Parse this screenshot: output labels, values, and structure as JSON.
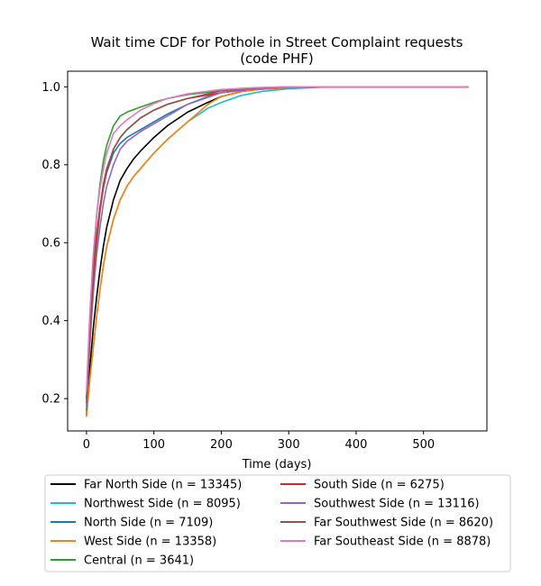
{
  "chart_data": {
    "type": "line",
    "title": [
      "Wait time CDF for Pothole in Street Complaint  requests",
      "(code PHF)"
    ],
    "xlabel": "Time (days)",
    "ylabel": "",
    "xlim": [
      -28,
      594
    ],
    "ylim": [
      0.117,
      1.04
    ],
    "xticks": [
      0,
      100,
      200,
      300,
      400,
      500
    ],
    "yticks": [
      0.2,
      0.4,
      0.6,
      0.8,
      1.0
    ],
    "xtick_labels": [
      "0",
      "100",
      "200",
      "300",
      "400",
      "500"
    ],
    "ytick_labels": [
      "0.2",
      "0.4",
      "0.6",
      "0.8",
      "1.0"
    ],
    "grid": false,
    "legend_placement": "below plot, two columns",
    "series": [
      {
        "name": "Far North Side (n = 13345)",
        "color": "#000000",
        "points": [
          [
            0,
            0.16
          ],
          [
            5,
            0.28
          ],
          [
            10,
            0.38
          ],
          [
            15,
            0.46
          ],
          [
            20,
            0.53
          ],
          [
            25,
            0.59
          ],
          [
            30,
            0.64
          ],
          [
            40,
            0.71
          ],
          [
            50,
            0.76
          ],
          [
            60,
            0.79
          ],
          [
            70,
            0.815
          ],
          [
            80,
            0.835
          ],
          [
            100,
            0.87
          ],
          [
            120,
            0.9
          ],
          [
            150,
            0.935
          ],
          [
            180,
            0.96
          ],
          [
            200,
            0.975
          ],
          [
            230,
            0.988
          ],
          [
            260,
            0.994
          ],
          [
            300,
            0.998
          ],
          [
            350,
            1.0
          ],
          [
            566,
            1.0
          ]
        ]
      },
      {
        "name": "Northwest Side (n = 8095)",
        "color": "#17becf",
        "points": [
          [
            0,
            0.155
          ],
          [
            5,
            0.25
          ],
          [
            10,
            0.33
          ],
          [
            15,
            0.41
          ],
          [
            20,
            0.48
          ],
          [
            25,
            0.54
          ],
          [
            30,
            0.59
          ],
          [
            40,
            0.66
          ],
          [
            50,
            0.71
          ],
          [
            60,
            0.745
          ],
          [
            70,
            0.77
          ],
          [
            80,
            0.79
          ],
          [
            100,
            0.83
          ],
          [
            120,
            0.865
          ],
          [
            150,
            0.91
          ],
          [
            180,
            0.945
          ],
          [
            200,
            0.96
          ],
          [
            230,
            0.978
          ],
          [
            260,
            0.988
          ],
          [
            300,
            0.995
          ],
          [
            350,
            0.999
          ],
          [
            400,
            1.0
          ],
          [
            566,
            1.0
          ]
        ]
      },
      {
        "name": "North Side (n = 7109)",
        "color": "#1f77b4",
        "points": [
          [
            0,
            0.2
          ],
          [
            5,
            0.38
          ],
          [
            10,
            0.52
          ],
          [
            15,
            0.62
          ],
          [
            20,
            0.69
          ],
          [
            25,
            0.74
          ],
          [
            30,
            0.78
          ],
          [
            40,
            0.83
          ],
          [
            50,
            0.855
          ],
          [
            60,
            0.87
          ],
          [
            80,
            0.89
          ],
          [
            100,
            0.91
          ],
          [
            120,
            0.93
          ],
          [
            150,
            0.955
          ],
          [
            180,
            0.975
          ],
          [
            200,
            0.985
          ],
          [
            250,
            0.995
          ],
          [
            300,
            0.999
          ],
          [
            350,
            1.0
          ],
          [
            566,
            1.0
          ]
        ]
      },
      {
        "name": "West Side (n = 13358)",
        "color": "#ff7f0e",
        "points": [
          [
            0,
            0.155
          ],
          [
            5,
            0.25
          ],
          [
            10,
            0.33
          ],
          [
            15,
            0.41
          ],
          [
            20,
            0.48
          ],
          [
            25,
            0.54
          ],
          [
            30,
            0.59
          ],
          [
            40,
            0.66
          ],
          [
            50,
            0.71
          ],
          [
            60,
            0.745
          ],
          [
            70,
            0.77
          ],
          [
            80,
            0.79
          ],
          [
            100,
            0.83
          ],
          [
            120,
            0.865
          ],
          [
            150,
            0.91
          ],
          [
            180,
            0.955
          ],
          [
            200,
            0.975
          ],
          [
            230,
            0.988
          ],
          [
            260,
            0.994
          ],
          [
            300,
            0.998
          ],
          [
            350,
            1.0
          ],
          [
            566,
            1.0
          ]
        ]
      },
      {
        "name": "Central (n = 3641)",
        "color": "#2ca02c",
        "points": [
          [
            0,
            0.17
          ],
          [
            5,
            0.38
          ],
          [
            10,
            0.55
          ],
          [
            15,
            0.67
          ],
          [
            20,
            0.75
          ],
          [
            25,
            0.81
          ],
          [
            30,
            0.85
          ],
          [
            40,
            0.9
          ],
          [
            50,
            0.925
          ],
          [
            60,
            0.935
          ],
          [
            80,
            0.948
          ],
          [
            100,
            0.96
          ],
          [
            120,
            0.97
          ],
          [
            150,
            0.98
          ],
          [
            200,
            0.99
          ],
          [
            250,
            0.996
          ],
          [
            300,
            0.999
          ],
          [
            350,
            1.0
          ],
          [
            566,
            1.0
          ]
        ]
      },
      {
        "name": "South Side (n = 6275)",
        "color": "#d62728",
        "points": [
          [
            0,
            0.2
          ],
          [
            5,
            0.38
          ],
          [
            10,
            0.52
          ],
          [
            15,
            0.62
          ],
          [
            20,
            0.69
          ],
          [
            25,
            0.75
          ],
          [
            30,
            0.79
          ],
          [
            40,
            0.84
          ],
          [
            50,
            0.87
          ],
          [
            60,
            0.89
          ],
          [
            80,
            0.92
          ],
          [
            100,
            0.94
          ],
          [
            120,
            0.955
          ],
          [
            150,
            0.97
          ],
          [
            200,
            0.985
          ],
          [
            250,
            0.995
          ],
          [
            300,
            0.999
          ],
          [
            350,
            1.0
          ],
          [
            566,
            1.0
          ]
        ]
      },
      {
        "name": "Southwest Side (n = 13116)",
        "color": "#9467bd",
        "points": [
          [
            0,
            0.18
          ],
          [
            5,
            0.34
          ],
          [
            10,
            0.47
          ],
          [
            15,
            0.57
          ],
          [
            20,
            0.64
          ],
          [
            25,
            0.7
          ],
          [
            30,
            0.745
          ],
          [
            40,
            0.8
          ],
          [
            50,
            0.84
          ],
          [
            60,
            0.86
          ],
          [
            80,
            0.885
          ],
          [
            100,
            0.905
          ],
          [
            120,
            0.925
          ],
          [
            150,
            0.955
          ],
          [
            200,
            0.985
          ],
          [
            250,
            0.995
          ],
          [
            300,
            0.999
          ],
          [
            350,
            1.0
          ],
          [
            566,
            1.0
          ]
        ]
      },
      {
        "name": "Far Southwest Side (n = 8620)",
        "color": "#8c564b",
        "points": [
          [
            0,
            0.19
          ],
          [
            5,
            0.36
          ],
          [
            10,
            0.5
          ],
          [
            15,
            0.6
          ],
          [
            20,
            0.68
          ],
          [
            25,
            0.74
          ],
          [
            30,
            0.785
          ],
          [
            40,
            0.84
          ],
          [
            50,
            0.87
          ],
          [
            60,
            0.89
          ],
          [
            80,
            0.92
          ],
          [
            100,
            0.94
          ],
          [
            120,
            0.955
          ],
          [
            150,
            0.97
          ],
          [
            200,
            0.99
          ],
          [
            250,
            0.997
          ],
          [
            300,
            1.0
          ],
          [
            566,
            1.0
          ]
        ]
      },
      {
        "name": "Far Southeast Side (n = 8878)",
        "color": "#e377c2",
        "points": [
          [
            0,
            0.22
          ],
          [
            5,
            0.42
          ],
          [
            10,
            0.57
          ],
          [
            15,
            0.67
          ],
          [
            20,
            0.74
          ],
          [
            25,
            0.79
          ],
          [
            30,
            0.83
          ],
          [
            40,
            0.88
          ],
          [
            50,
            0.9
          ],
          [
            60,
            0.915
          ],
          [
            80,
            0.94
          ],
          [
            100,
            0.957
          ],
          [
            120,
            0.97
          ],
          [
            150,
            0.982
          ],
          [
            200,
            0.993
          ],
          [
            250,
            0.998
          ],
          [
            300,
            1.0
          ],
          [
            566,
            1.0
          ]
        ]
      }
    ]
  }
}
